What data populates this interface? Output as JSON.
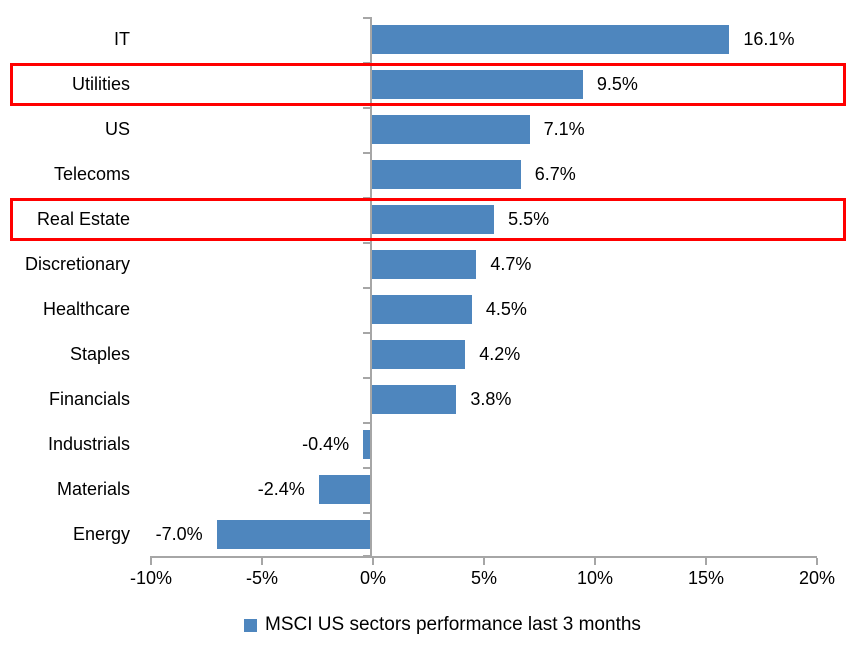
{
  "chart_data": {
    "type": "bar",
    "orientation": "horizontal",
    "title": "",
    "categories": [
      "IT",
      "Utilities",
      "US",
      "Telecoms",
      "Real Estate",
      "Discretionary",
      "Healthcare",
      "Staples",
      "Financials",
      "Industrials",
      "Materials",
      "Energy"
    ],
    "values": [
      16.1,
      9.5,
      7.1,
      6.7,
      5.5,
      4.7,
      4.5,
      4.2,
      3.8,
      -0.4,
      -2.4,
      -7.0
    ],
    "value_labels": [
      "16.1%",
      "9.5%",
      "7.1%",
      "6.7%",
      "5.5%",
      "4.7%",
      "4.5%",
      "4.2%",
      "3.8%",
      "-0.4%",
      "-2.4%",
      "-7.0%"
    ],
    "highlighted_categories": [
      "Utilities",
      "Real Estate"
    ],
    "x_axis": {
      "range": [
        -10,
        20
      ],
      "ticks": [
        -10,
        -5,
        0,
        5,
        10,
        15,
        20
      ],
      "tick_labels": [
        "-10%",
        "-5%",
        "0%",
        "5%",
        "10%",
        "15%",
        "20%"
      ]
    },
    "ylabel": "",
    "xlabel": "",
    "grid": false,
    "legend": {
      "position": "bottom",
      "label": "MSCI US sectors performance last 3 months"
    },
    "colors": {
      "bar": "#4E86BE",
      "axis": "#A6A6A6",
      "highlight_box": "#FF0000",
      "text": "#000000"
    }
  }
}
